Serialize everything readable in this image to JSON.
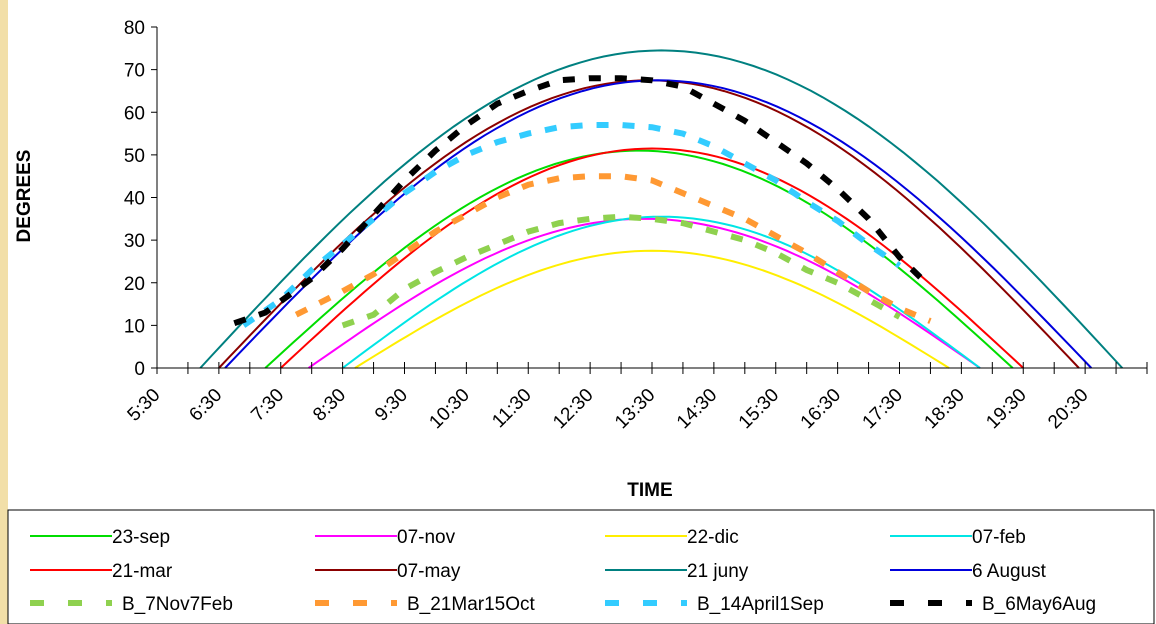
{
  "chart_data": {
    "type": "line",
    "title": "",
    "xlabel": "TIME",
    "ylabel": "DEGREES",
    "ylim": [
      0,
      80
    ],
    "yticks": [
      0,
      10,
      20,
      30,
      40,
      50,
      60,
      70,
      80
    ],
    "xlim": [
      5.5,
      21.5
    ],
    "xticks": [
      "5:30",
      "6:30",
      "7:30",
      "8:30",
      "9:30",
      "10:30",
      "11:30",
      "12:30",
      "13:30",
      "14:30",
      "15:30",
      "16:30",
      "17:30",
      "18:30",
      "19:30",
      "20:30"
    ],
    "grid": false,
    "legend_position": "bottom",
    "series": [
      {
        "name": "23-sep",
        "color": "#00dd00",
        "style": "solid",
        "sunrise": 7.25,
        "sunset": 19.33,
        "peak": 51
      },
      {
        "name": "07-nov",
        "color": "#ff00ff",
        "style": "solid",
        "sunrise": 7.95,
        "sunset": 18.8,
        "peak": 35
      },
      {
        "name": "22-dic",
        "color": "#ffee00",
        "style": "solid",
        "sunrise": 8.7,
        "sunset": 18.3,
        "peak": 27.5
      },
      {
        "name": "07-feb",
        "color": "#00e5e5",
        "style": "solid",
        "sunrise": 8.5,
        "sunset": 18.8,
        "peak": 35.5
      },
      {
        "name": "21-mar",
        "color": "#ff0000",
        "style": "solid",
        "sunrise": 7.5,
        "sunset": 19.5,
        "peak": 51.5
      },
      {
        "name": "07-may",
        "color": "#8b0000",
        "style": "solid",
        "sunrise": 6.5,
        "sunset": 20.4,
        "peak": 67.5
      },
      {
        "name": "21 juny",
        "color": "#008080",
        "style": "solid",
        "sunrise": 6.2,
        "sunset": 21.1,
        "peak": 74.5
      },
      {
        "name": "6 August",
        "color": "#0000dd",
        "style": "solid",
        "sunrise": 6.6,
        "sunset": 20.6,
        "peak": 67.5
      },
      {
        "name": "B_7Nov7Feb",
        "color": "#8fd14f",
        "style": "dashed",
        "points": [
          [
            8.5,
            10
          ],
          [
            9.0,
            12.5
          ],
          [
            9.5,
            18.5
          ],
          [
            10.0,
            22.5
          ],
          [
            10.5,
            26
          ],
          [
            11.0,
            29
          ],
          [
            11.5,
            32
          ],
          [
            12.0,
            34
          ],
          [
            12.5,
            35
          ],
          [
            13.0,
            35.5
          ],
          [
            13.5,
            35
          ],
          [
            14.0,
            34
          ],
          [
            14.5,
            32
          ],
          [
            15.0,
            30
          ],
          [
            15.5,
            27
          ],
          [
            16.0,
            23
          ],
          [
            16.5,
            20
          ],
          [
            17.0,
            16
          ],
          [
            17.5,
            12
          ]
        ]
      },
      {
        "name": "B_21Mar15Oct",
        "color": "#ff9933",
        "style": "dashed",
        "points": [
          [
            7.75,
            12.5
          ],
          [
            8.5,
            18
          ],
          [
            9.0,
            22
          ],
          [
            9.5,
            27
          ],
          [
            10.0,
            32
          ],
          [
            10.5,
            36
          ],
          [
            11.0,
            40
          ],
          [
            11.5,
            43
          ],
          [
            12.0,
            44.5
          ],
          [
            12.5,
            45
          ],
          [
            13.0,
            45
          ],
          [
            13.5,
            44
          ],
          [
            14.0,
            41
          ],
          [
            14.5,
            38
          ],
          [
            15.0,
            35
          ],
          [
            15.5,
            31
          ],
          [
            16.0,
            27
          ],
          [
            16.5,
            22.5
          ],
          [
            17.0,
            18
          ],
          [
            17.5,
            14
          ],
          [
            18.0,
            11
          ]
        ]
      },
      {
        "name": "B_14April1Sep",
        "color": "#33ccff",
        "style": "dashed",
        "points": [
          [
            6.9,
            10
          ],
          [
            7.5,
            16
          ],
          [
            8.0,
            23
          ],
          [
            8.5,
            29
          ],
          [
            9.0,
            35
          ],
          [
            9.5,
            41
          ],
          [
            10.0,
            46
          ],
          [
            10.5,
            50
          ],
          [
            11.0,
            53
          ],
          [
            11.5,
            55
          ],
          [
            12.0,
            56.5
          ],
          [
            12.5,
            57
          ],
          [
            13.0,
            57
          ],
          [
            13.5,
            56.5
          ],
          [
            14.0,
            55
          ],
          [
            14.5,
            52
          ],
          [
            15.0,
            48
          ],
          [
            15.5,
            44
          ],
          [
            16.0,
            39
          ],
          [
            16.5,
            34.5
          ],
          [
            17.0,
            29
          ],
          [
            17.5,
            24
          ]
        ]
      },
      {
        "name": "B_6May6Aug",
        "color": "#000000",
        "style": "dashed",
        "points": [
          [
            6.75,
            10.5
          ],
          [
            7.25,
            13
          ],
          [
            8.0,
            21
          ],
          [
            8.5,
            28
          ],
          [
            9.0,
            36
          ],
          [
            9.5,
            44
          ],
          [
            10.0,
            51
          ],
          [
            10.5,
            57
          ],
          [
            11.0,
            62
          ],
          [
            11.5,
            65
          ],
          [
            12.0,
            67.5
          ],
          [
            12.5,
            68
          ],
          [
            13.0,
            68
          ],
          [
            13.5,
            67.5
          ],
          [
            14.0,
            66
          ],
          [
            14.5,
            62
          ],
          [
            15.0,
            58
          ],
          [
            15.5,
            53
          ],
          [
            16.0,
            48
          ],
          [
            16.5,
            42
          ],
          [
            17.0,
            35
          ],
          [
            17.5,
            26
          ],
          [
            18.0,
            19
          ]
        ]
      }
    ]
  }
}
